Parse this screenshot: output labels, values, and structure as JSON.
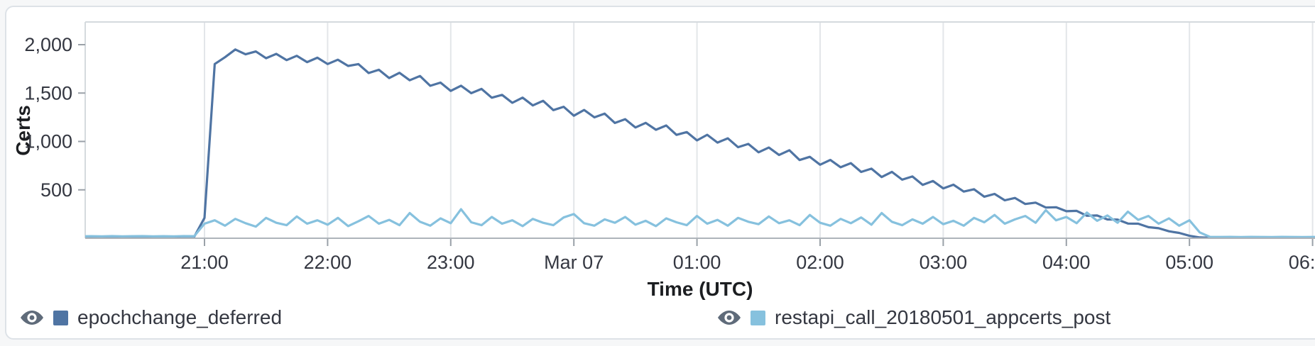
{
  "chart_data": {
    "type": "line",
    "title": "",
    "xlabel": "Time (UTC)",
    "ylabel": "Certs",
    "grid": "vertical-only",
    "legend_position": "bottom",
    "x_axis": {
      "visible_start": "Mar 06 20:00",
      "visible_end": "Mar 07 06:00",
      "ticks": [
        {
          "offset_hours": 1,
          "label": "21:00"
        },
        {
          "offset_hours": 2,
          "label": "22:00"
        },
        {
          "offset_hours": 3,
          "label": "23:00"
        },
        {
          "offset_hours": 4,
          "label": "Mar 07"
        },
        {
          "offset_hours": 5,
          "label": "01:00"
        },
        {
          "offset_hours": 6,
          "label": "02:00"
        },
        {
          "offset_hours": 7,
          "label": "03:00"
        },
        {
          "offset_hours": 8,
          "label": "04:00"
        },
        {
          "offset_hours": 9,
          "label": "05:00"
        },
        {
          "offset_hours": 10,
          "label": "06:00"
        }
      ]
    },
    "y_axis": {
      "min": 0,
      "max": 2234,
      "ticks": [
        {
          "value": 500,
          "label": "500"
        },
        {
          "value": 1000,
          "label": "1,000"
        },
        {
          "value": 1500,
          "label": "1,500"
        },
        {
          "value": 2000,
          "label": "2,000"
        }
      ]
    },
    "series": [
      {
        "name": "epochchange_deferred",
        "color": "#4f74a3",
        "start_minute": 0,
        "step_minutes": 5,
        "values": [
          15,
          16,
          15,
          17,
          15,
          16,
          15,
          16,
          17,
          15,
          16,
          15,
          210,
          1800,
          1870,
          1950,
          1900,
          1930,
          1860,
          1905,
          1840,
          1885,
          1820,
          1865,
          1800,
          1845,
          1780,
          1799,
          1707,
          1741,
          1655,
          1709,
          1632,
          1676,
          1575,
          1608,
          1522,
          1576,
          1499,
          1543,
          1452,
          1481,
          1399,
          1453,
          1372,
          1420,
          1324,
          1358,
          1266,
          1325,
          1249,
          1287,
          1191,
          1230,
          1144,
          1192,
          1121,
          1165,
          1068,
          1097,
          1011,
          1069,
          988,
          1032,
          941,
          974,
          888,
          937,
          860,
          909,
          808,
          841,
          760,
          809,
          733,
          776,
          685,
          719,
          632,
          686,
          605,
          638,
          552,
          591,
          515,
          553,
          482,
          506,
          429,
          458,
          392,
          416,
          354,
          368,
          317,
          320,
          279,
          283,
          232,
          235,
          194,
          193,
          152,
          150,
          114,
          103,
          72,
          55,
          25,
          8,
          5
        ]
      },
      {
        "name": "restapi_call_20180501_appcerts_post",
        "color": "#86c1de",
        "start_minute": 0,
        "step_minutes": 5,
        "values": [
          20,
          21,
          20,
          22,
          20,
          21,
          22,
          20,
          21,
          20,
          22,
          21,
          150,
          185,
          130,
          200,
          155,
          120,
          210,
          160,
          135,
          225,
          150,
          185,
          140,
          210,
          125,
          175,
          230,
          150,
          190,
          135,
          260,
          170,
          130,
          205,
          155,
          300,
          165,
          135,
          220,
          150,
          185,
          125,
          200,
          160,
          135,
          215,
          250,
          155,
          130,
          195,
          160,
          220,
          140,
          180,
          125,
          205,
          165,
          135,
          230,
          150,
          190,
          130,
          210,
          170,
          145,
          225,
          155,
          185,
          135,
          240,
          160,
          130,
          200,
          155,
          215,
          140,
          260,
          170,
          135,
          195,
          150,
          220,
          145,
          180,
          130,
          210,
          165,
          240,
          150,
          195,
          230,
          160,
          290,
          185,
          220,
          155,
          265,
          180,
          235,
          160,
          275,
          190,
          230,
          150,
          205,
          130,
          185,
          60,
          14,
          13,
          14,
          12,
          14,
          13,
          12,
          14,
          13,
          12,
          13,
          14
        ]
      }
    ]
  }
}
